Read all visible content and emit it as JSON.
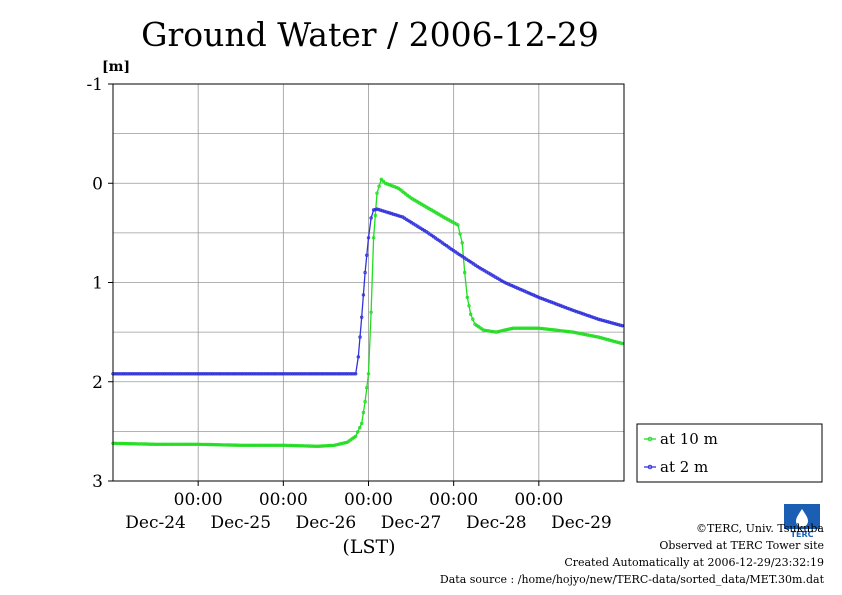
{
  "chart_data": {
    "type": "line",
    "title": "Ground Water / 2006-12-29",
    "ylabel": "[m]",
    "xlabel": "(LST)",
    "ylim": [
      -1,
      3
    ],
    "y_inverted": true,
    "y_ticks": [
      "-1",
      "0",
      "1",
      "2",
      "3"
    ],
    "x_tick_time_labels": [
      "00:00",
      "00:00",
      "00:00",
      "00:00",
      "00:00"
    ],
    "x_day_labels": [
      "Dec-24",
      "Dec-25",
      "Dec-26",
      "Dec-27",
      "Dec-28",
      "Dec-29"
    ],
    "x_range_days": [
      0,
      6
    ],
    "x_unit": "days since Dec-24 00:00 LST",
    "grid": true,
    "legend_position": "right",
    "series": [
      {
        "name": "at 10 m",
        "color": "#22dd22",
        "x": [
          0.0,
          0.5,
          1.0,
          1.5,
          2.0,
          2.4,
          2.6,
          2.75,
          2.85,
          2.92,
          2.96,
          3.0,
          3.03,
          3.06,
          3.1,
          3.15,
          3.2,
          3.35,
          3.5,
          3.7,
          3.9,
          4.05,
          4.1,
          4.13,
          4.16,
          4.2,
          4.25,
          4.35,
          4.5,
          4.7,
          5.0,
          5.4,
          5.7,
          6.0
        ],
        "values": [
          2.62,
          2.63,
          2.63,
          2.64,
          2.64,
          2.65,
          2.64,
          2.61,
          2.55,
          2.42,
          2.2,
          1.92,
          1.3,
          0.55,
          0.1,
          -0.04,
          0.0,
          0.05,
          0.15,
          0.25,
          0.35,
          0.42,
          0.6,
          0.9,
          1.15,
          1.32,
          1.42,
          1.48,
          1.5,
          1.46,
          1.46,
          1.5,
          1.55,
          1.62
        ]
      },
      {
        "name": "at 2 m",
        "color": "#3333dd",
        "x": [
          0.0,
          0.5,
          1.0,
          1.5,
          2.0,
          2.3,
          2.5,
          2.7,
          2.85,
          2.88,
          2.92,
          2.96,
          3.0,
          3.03,
          3.06,
          3.1,
          3.4,
          3.7,
          4.0,
          4.3,
          4.6,
          5.0,
          5.4,
          5.7,
          6.0
        ],
        "values": [
          1.92,
          1.92,
          1.92,
          1.92,
          1.92,
          1.92,
          1.92,
          1.92,
          1.92,
          1.75,
          1.35,
          0.9,
          0.55,
          0.35,
          0.27,
          0.26,
          0.34,
          0.5,
          0.68,
          0.85,
          1.0,
          1.15,
          1.28,
          1.37,
          1.44
        ]
      }
    ]
  },
  "credits": {
    "copyright": "©TERC, Univ. Tsukuba",
    "site": "Observed at TERC Tower site",
    "created": "Created Automatically at 2006-12-29/23:32:19",
    "source": "Data source : /home/hojyo/new/TERC-data/sorted_data/MET.30m.dat"
  },
  "logo": {
    "text": "TERC",
    "color": "#1a5fb4"
  }
}
